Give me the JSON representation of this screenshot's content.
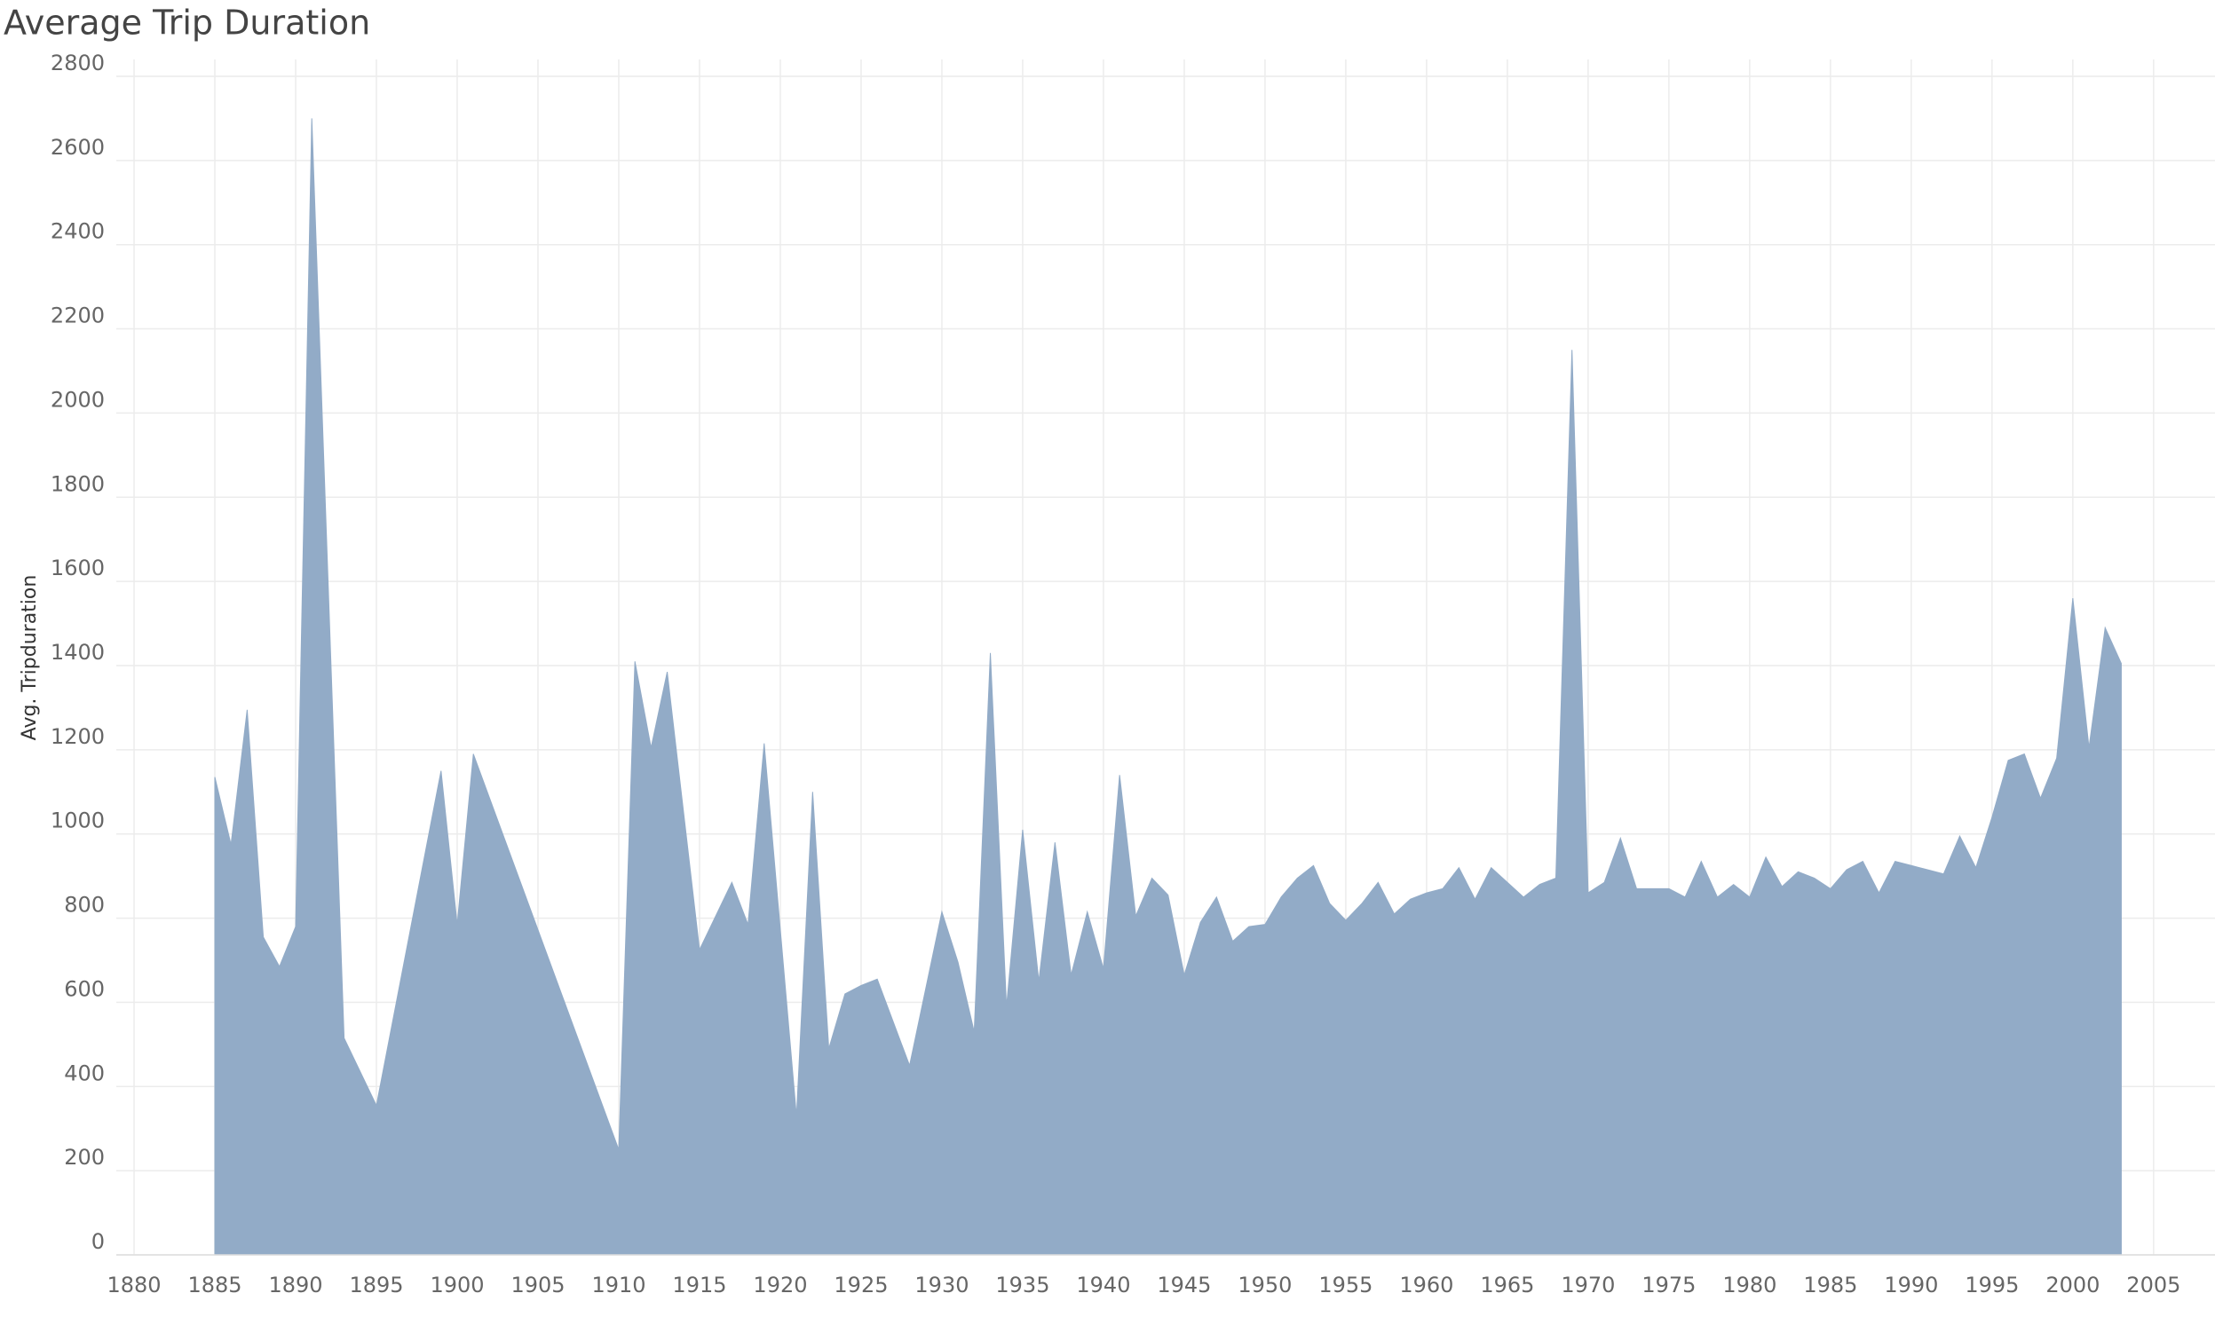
{
  "chart_data": {
    "type": "area",
    "title": "Average Trip Duration",
    "y_label": "Avg. Tripduration",
    "color": "#92abc7",
    "grid": true,
    "x": [
      1885,
      1886,
      1887,
      1888,
      1889,
      1890,
      1891,
      1893,
      1895,
      1899,
      1900,
      1901,
      1910,
      1911,
      1912,
      1913,
      1915,
      1917,
      1918,
      1919,
      1921,
      1922,
      1923,
      1924,
      1925,
      1926,
      1928,
      1930,
      1931,
      1932,
      1933,
      1934,
      1935,
      1936,
      1937,
      1938,
      1939,
      1940,
      1941,
      1942,
      1943,
      1944,
      1945,
      1946,
      1947,
      1948,
      1949,
      1950,
      1951,
      1952,
      1953,
      1954,
      1955,
      1956,
      1957,
      1958,
      1959,
      1960,
      1961,
      1962,
      1963,
      1964,
      1965,
      1966,
      1967,
      1968,
      1969,
      1970,
      1971,
      1972,
      1973,
      1974,
      1975,
      1976,
      1977,
      1978,
      1979,
      1980,
      1981,
      1982,
      1983,
      1984,
      1985,
      1986,
      1987,
      1988,
      1989,
      1990,
      1991,
      1992,
      1993,
      1994,
      1995,
      1996,
      1997,
      1998,
      1999,
      2000,
      2001,
      2002,
      2003
    ],
    "values": [
      1135,
      975,
      1295,
      755,
      685,
      780,
      2700,
      515,
      355,
      1150,
      785,
      1190,
      250,
      1410,
      1205,
      1385,
      725,
      885,
      785,
      1215,
      330,
      1100,
      490,
      620,
      640,
      655,
      450,
      815,
      695,
      530,
      1430,
      590,
      1010,
      650,
      980,
      665,
      815,
      680,
      1140,
      805,
      895,
      855,
      665,
      790,
      850,
      745,
      780,
      785,
      850,
      895,
      925,
      835,
      795,
      835,
      885,
      810,
      845,
      860,
      870,
      920,
      845,
      920,
      885,
      850,
      880,
      895,
      2150,
      860,
      885,
      990,
      870,
      870,
      870,
      850,
      935,
      850,
      880,
      850,
      945,
      875,
      910,
      895,
      870,
      915,
      935,
      860,
      935,
      925,
      915,
      905,
      995,
      920,
      1040,
      1175,
      1190,
      1085,
      1180,
      1560,
      1205,
      1490,
      1405
    ],
    "xlim": [
      1878.9,
      2008.8
    ],
    "ylim": [
      0,
      2840
    ],
    "xticks": [
      1880,
      1885,
      1890,
      1895,
      1900,
      1905,
      1910,
      1915,
      1920,
      1925,
      1930,
      1935,
      1940,
      1945,
      1950,
      1955,
      1960,
      1965,
      1970,
      1975,
      1980,
      1985,
      1990,
      1995,
      2000,
      2005
    ],
    "yticks": [
      0,
      200,
      400,
      600,
      800,
      1000,
      1200,
      1400,
      1600,
      1800,
      2000,
      2200,
      2400,
      2600,
      2800
    ]
  }
}
